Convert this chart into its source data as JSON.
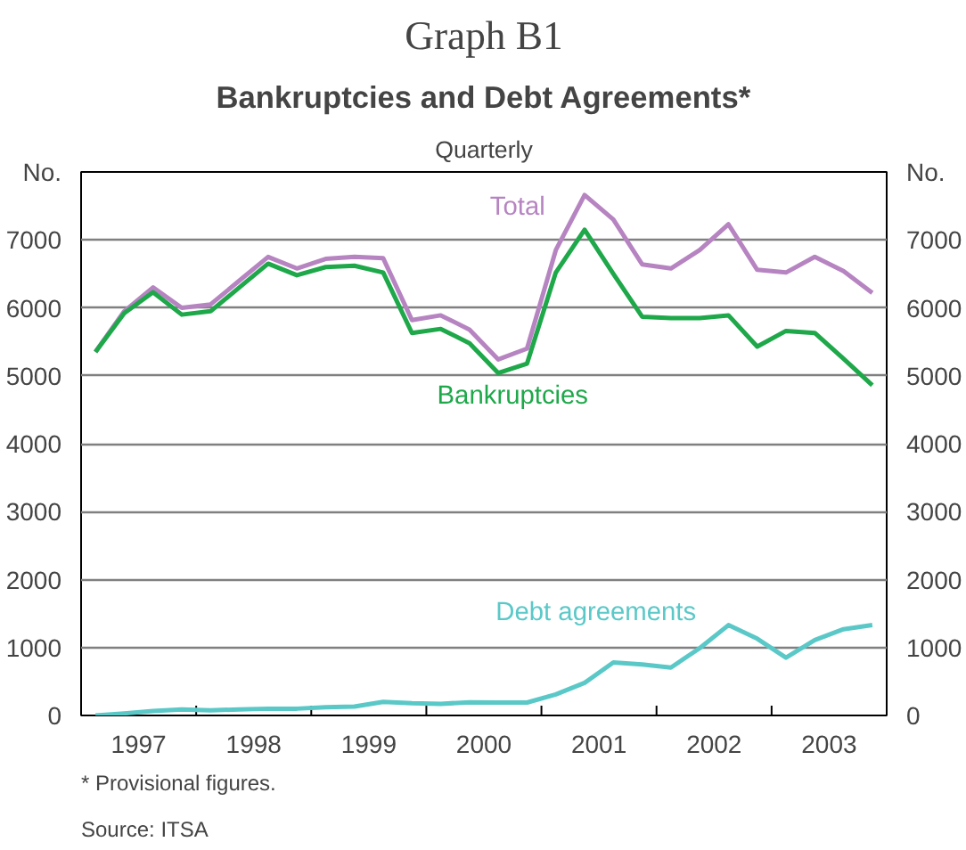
{
  "chart_data": {
    "type": "line",
    "title": "Graph B1",
    "subtitle": "Bankruptcies and Debt Agreements*",
    "annotations": [
      "Quarterly",
      "* Provisional figures.",
      "Source: ITSA"
    ],
    "ylabel": "No.",
    "y2label": "No.",
    "x": [
      1997.125,
      1997.375,
      1997.625,
      1997.875,
      1998.125,
      1998.375,
      1998.625,
      1998.875,
      1999.125,
      1999.375,
      1999.625,
      1999.875,
      2000.125,
      2000.375,
      2000.625,
      2000.875,
      2001.125,
      2001.375,
      2001.625,
      2001.875,
      2002.125,
      2002.375,
      2002.625,
      2002.875,
      2003.125,
      2003.375,
      2003.625,
      2003.875
    ],
    "series": [
      {
        "name": "Total",
        "color": "#b784c2",
        "values": [
          5350,
          5950,
          6300,
          6000,
          6050,
          6400,
          6750,
          6580,
          6720,
          6750,
          6730,
          5820,
          5890,
          5680,
          5240,
          5400,
          6850,
          7660,
          7300,
          6640,
          6580,
          6850,
          7230,
          6560,
          6520,
          6750,
          6540,
          6220
        ]
      },
      {
        "name": "Bankruptcies",
        "color": "#1ea84a",
        "values": [
          5350,
          5920,
          6230,
          5900,
          5950,
          6300,
          6650,
          6480,
          6600,
          6620,
          6520,
          5630,
          5690,
          5480,
          5040,
          5180,
          6520,
          7150,
          6500,
          5870,
          5850,
          5850,
          5890,
          5430,
          5660,
          5630,
          5250,
          4860
        ]
      },
      {
        "name": "Debt agreements",
        "color": "#5bc8c8",
        "values": [
          0,
          30,
          65,
          90,
          75,
          90,
          100,
          100,
          120,
          130,
          200,
          180,
          170,
          195,
          190,
          190,
          310,
          480,
          780,
          750,
          705,
          990,
          1330,
          1130,
          850,
          1110,
          1270,
          1330
        ]
      }
    ],
    "xlim": [
      1997,
      2004
    ],
    "xticks": [
      {
        "value": 1997.5,
        "label": "1997"
      },
      {
        "value": 1998,
        "label": null
      },
      {
        "value": 1998.5,
        "label": "1998"
      },
      {
        "value": 1999,
        "label": null
      },
      {
        "value": 1999.5,
        "label": "1999"
      },
      {
        "value": 2000,
        "label": null
      },
      {
        "value": 2000.5,
        "label": "2000"
      },
      {
        "value": 2001,
        "label": null
      },
      {
        "value": 2001.5,
        "label": "2001"
      },
      {
        "value": 2002,
        "label": null
      },
      {
        "value": 2002.5,
        "label": "2002"
      },
      {
        "value": 2003,
        "label": null
      },
      {
        "value": 2003.5,
        "label": "2003"
      }
    ],
    "ylim": [
      0,
      8000
    ],
    "yticks": [
      0,
      1000,
      2000,
      3000,
      4000,
      5000,
      6000,
      7000
    ],
    "y2lim": [
      0,
      8000
    ],
    "y2ticks": [
      0,
      1000,
      2000,
      3000,
      4000,
      5000,
      6000,
      7000
    ],
    "grid": "y"
  }
}
